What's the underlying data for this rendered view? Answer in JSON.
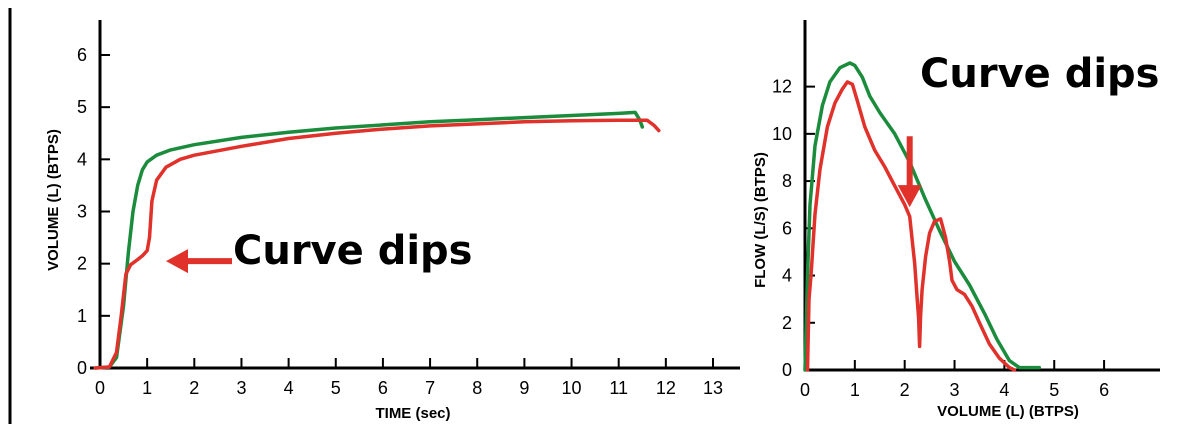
{
  "colors": {
    "series_green": "#1a8c3c",
    "series_red": "#e0312b",
    "arrow_red": "#e0312b",
    "axis": "#000000"
  },
  "chart_data": [
    {
      "type": "line",
      "title": "",
      "xlabel": "TIME (sec)",
      "ylabel": "VOLUME (L) (BTPS)",
      "xlim": [
        0,
        13
      ],
      "ylim": [
        0,
        6
      ],
      "xticks": [
        "0",
        "1",
        "2",
        "3",
        "4",
        "5",
        "6",
        "7",
        "8",
        "9",
        "10",
        "11",
        "12",
        "13"
      ],
      "yticks": [
        "0",
        "1",
        "2",
        "3",
        "4",
        "5",
        "6"
      ],
      "grid": false,
      "series": [
        {
          "color": "#1a8c3c",
          "points": [
            [
              -0.1,
              0
            ],
            [
              0.2,
              0.02
            ],
            [
              0.35,
              0.2
            ],
            [
              0.5,
              1.2
            ],
            [
              0.6,
              2.2
            ],
            [
              0.7,
              3.0
            ],
            [
              0.8,
              3.5
            ],
            [
              0.9,
              3.8
            ],
            [
              1.0,
              3.95
            ],
            [
              1.2,
              4.08
            ],
            [
              1.5,
              4.18
            ],
            [
              2,
              4.28
            ],
            [
              3,
              4.42
            ],
            [
              4,
              4.52
            ],
            [
              5,
              4.6
            ],
            [
              6,
              4.66
            ],
            [
              7,
              4.72
            ],
            [
              8,
              4.76
            ],
            [
              9,
              4.8
            ],
            [
              10,
              4.84
            ],
            [
              11,
              4.88
            ],
            [
              11.35,
              4.9
            ],
            [
              11.45,
              4.75
            ],
            [
              11.5,
              4.62
            ]
          ]
        },
        {
          "color": "#e0312b",
          "points": [
            [
              -0.1,
              0
            ],
            [
              0.2,
              0.02
            ],
            [
              0.35,
              0.3
            ],
            [
              0.45,
              1.0
            ],
            [
              0.55,
              1.8
            ],
            [
              0.65,
              1.98
            ],
            [
              0.8,
              2.08
            ],
            [
              0.9,
              2.15
            ],
            [
              1.0,
              2.25
            ],
            [
              1.05,
              2.5
            ],
            [
              1.1,
              3.2
            ],
            [
              1.2,
              3.6
            ],
            [
              1.4,
              3.85
            ],
            [
              1.7,
              4.0
            ],
            [
              2,
              4.08
            ],
            [
              3,
              4.25
            ],
            [
              4,
              4.4
            ],
            [
              5,
              4.5
            ],
            [
              6,
              4.58
            ],
            [
              7,
              4.64
            ],
            [
              8,
              4.68
            ],
            [
              9,
              4.72
            ],
            [
              10,
              4.74
            ],
            [
              11,
              4.75
            ],
            [
              11.6,
              4.75
            ],
            [
              11.75,
              4.65
            ],
            [
              11.85,
              4.55
            ]
          ]
        }
      ],
      "annotation": {
        "text": "Curve dips",
        "arrow_tip": [
          1.4,
          2.05
        ],
        "arrow_tail": [
          2.8,
          2.05
        ]
      }
    },
    {
      "type": "line",
      "title": "",
      "xlabel": "VOLUME (L) (BTPS)",
      "ylabel": "FLOW (L/S) (BTPS)",
      "xlim": [
        0,
        6.5
      ],
      "ylim": [
        0,
        13
      ],
      "xticks": [
        "0",
        "1",
        "2",
        "3",
        "4",
        "5",
        "6"
      ],
      "yticks": [
        "0",
        "2",
        "4",
        "6",
        "8",
        "10",
        "12"
      ],
      "grid": false,
      "series": [
        {
          "color": "#1a8c3c",
          "points": [
            [
              0,
              0
            ],
            [
              0.05,
              4
            ],
            [
              0.1,
              7
            ],
            [
              0.2,
              9.5
            ],
            [
              0.35,
              11.2
            ],
            [
              0.5,
              12.2
            ],
            [
              0.7,
              12.8
            ],
            [
              0.9,
              13.0
            ],
            [
              1.0,
              12.9
            ],
            [
              1.15,
              12.4
            ],
            [
              1.3,
              11.6
            ],
            [
              1.5,
              10.9
            ],
            [
              1.8,
              10.0
            ],
            [
              2.1,
              8.8
            ],
            [
              2.4,
              7.3
            ],
            [
              2.7,
              5.9
            ],
            [
              3.0,
              4.6
            ],
            [
              3.3,
              3.6
            ],
            [
              3.6,
              2.4
            ],
            [
              3.85,
              1.3
            ],
            [
              4.1,
              0.4
            ],
            [
              4.3,
              0.1
            ],
            [
              4.7,
              0.1
            ]
          ]
        },
        {
          "color": "#e0312b",
          "points": [
            [
              0.05,
              0
            ],
            [
              0.08,
              3
            ],
            [
              0.12,
              4
            ],
            [
              0.2,
              6.6
            ],
            [
              0.3,
              8.5
            ],
            [
              0.45,
              10.3
            ],
            [
              0.6,
              11.3
            ],
            [
              0.75,
              11.9
            ],
            [
              0.85,
              12.2
            ],
            [
              0.95,
              12.1
            ],
            [
              1.05,
              11.4
            ],
            [
              1.2,
              10.3
            ],
            [
              1.4,
              9.3
            ],
            [
              1.6,
              8.6
            ],
            [
              1.8,
              7.8
            ],
            [
              2.0,
              7.0
            ],
            [
              2.1,
              6.5
            ],
            [
              2.2,
              4.5
            ],
            [
              2.25,
              3.0
            ],
            [
              2.28,
              2.2
            ],
            [
              2.3,
              1.0
            ],
            [
              2.32,
              2.3
            ],
            [
              2.35,
              3.4
            ],
            [
              2.42,
              4.8
            ],
            [
              2.5,
              5.8
            ],
            [
              2.6,
              6.3
            ],
            [
              2.72,
              6.4
            ],
            [
              2.82,
              5.6
            ],
            [
              2.9,
              4.6
            ],
            [
              2.95,
              3.8
            ],
            [
              3.05,
              3.4
            ],
            [
              3.2,
              3.2
            ],
            [
              3.35,
              2.7
            ],
            [
              3.5,
              2.0
            ],
            [
              3.7,
              1.1
            ],
            [
              3.9,
              0.5
            ],
            [
              4.1,
              0.1
            ],
            [
              4.2,
              0
            ]
          ]
        }
      ],
      "annotation": {
        "text": "Curve dips",
        "arrow_tip": [
          2.1,
          6.9
        ],
        "arrow_tail": [
          2.1,
          9.9
        ]
      }
    }
  ]
}
